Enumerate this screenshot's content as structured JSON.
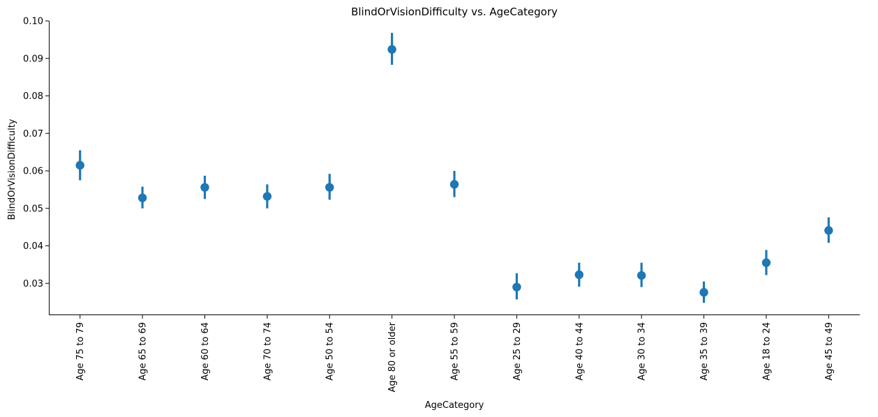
{
  "chart_data": {
    "type": "scatter",
    "style": "pointplot-with-error-bars",
    "title": "BlindOrVisionDifficulty vs. AgeCategory",
    "xlabel": "AgeCategory",
    "ylabel": "BlindOrVisionDifficulty",
    "ylim": [
      0.0215,
      0.1
    ],
    "yticks": [
      0.03,
      0.04,
      0.05,
      0.06,
      0.07,
      0.08,
      0.09,
      0.1
    ],
    "ytick_labels": [
      "0.03",
      "0.04",
      "0.05",
      "0.06",
      "0.07",
      "0.08",
      "0.09",
      "0.10"
    ],
    "grid": false,
    "color": "#1f77b4",
    "categories": [
      "Age 75 to 79",
      "Age 65 to 69",
      "Age 60 to 64",
      "Age 70 to 74",
      "Age 50 to 54",
      "Age 80 or older",
      "Age 55 to 59",
      "Age 25 to 29",
      "Age 40 to 44",
      "Age 30 to 34",
      "Age 35 to 39",
      "Age 18 to 24",
      "Age 45 to 49"
    ],
    "values": [
      0.0615,
      0.0528,
      0.0556,
      0.0532,
      0.0556,
      0.0924,
      0.0564,
      0.029,
      0.0323,
      0.0321,
      0.0276,
      0.0355,
      0.0441
    ],
    "ci_lower": [
      0.0575,
      0.05,
      0.0525,
      0.05,
      0.0523,
      0.0883,
      0.053,
      0.0257,
      0.0291,
      0.029,
      0.0248,
      0.0322,
      0.0408
    ],
    "ci_upper": [
      0.0655,
      0.0558,
      0.0587,
      0.0564,
      0.0592,
      0.0968,
      0.06,
      0.0327,
      0.0355,
      0.0355,
      0.0305,
      0.0389,
      0.0476
    ]
  }
}
